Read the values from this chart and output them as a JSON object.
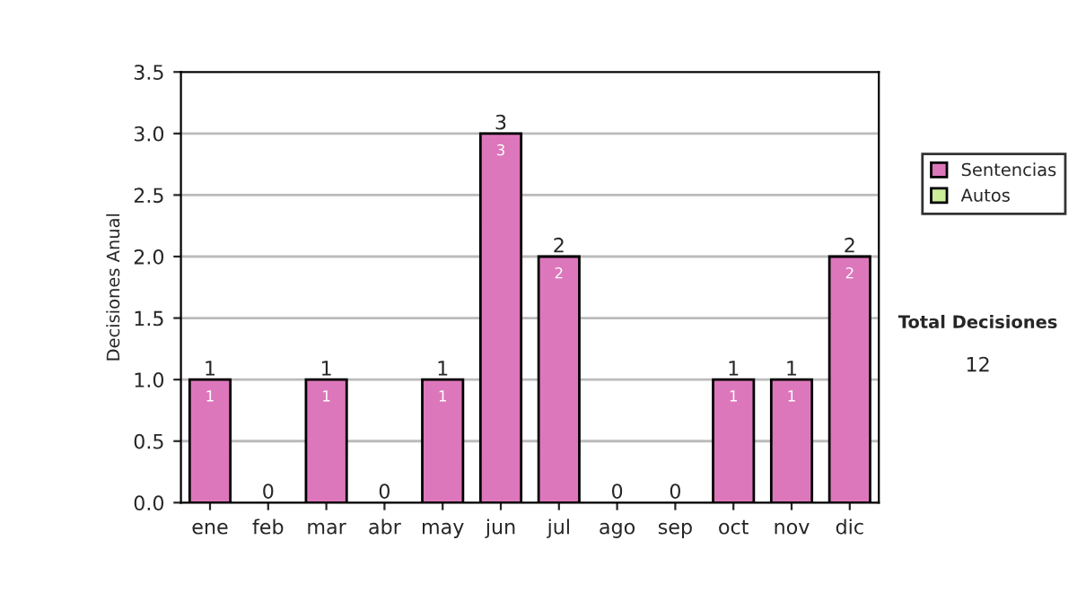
{
  "chart_data": {
    "type": "bar",
    "stacked": true,
    "ylabel": "Decisiones Anual",
    "categories": [
      "ene",
      "feb",
      "mar",
      "abr",
      "may",
      "jun",
      "jul",
      "ago",
      "sep",
      "oct",
      "nov",
      "dic"
    ],
    "series": [
      {
        "name": "Sentencias",
        "color": "#dd77bb",
        "values": [
          1,
          0,
          1,
          0,
          1,
          3,
          2,
          0,
          0,
          1,
          1,
          2
        ],
        "value_labels": [
          "1",
          null,
          "1",
          null,
          "1",
          "3",
          "2",
          null,
          null,
          "1",
          "1",
          "2"
        ]
      },
      {
        "name": "Autos",
        "color": "#ccee99",
        "values": [
          0,
          0,
          0,
          0,
          0,
          0,
          0,
          0,
          0,
          0,
          0,
          0
        ]
      }
    ],
    "totals": [
      "1",
      "0",
      "1",
      "0",
      "1",
      "3",
      "2",
      "0",
      "0",
      "1",
      "1",
      "2"
    ],
    "ylim": [
      0,
      3.5
    ],
    "yticks": [
      {
        "value": 0,
        "label": "0.0"
      },
      {
        "value": 0.5,
        "label": "0.5"
      },
      {
        "value": 1,
        "label": "1.0"
      },
      {
        "value": 1.5,
        "label": "1.5"
      },
      {
        "value": 2,
        "label": "2.0"
      },
      {
        "value": 2.5,
        "label": "2.5"
      },
      {
        "value": 3,
        "label": "3.0"
      },
      {
        "value": 3.5,
        "label": "3.5"
      }
    ],
    "grid": "y",
    "legend": "right",
    "annotations": [
      "Total Decisiones",
      "12"
    ]
  }
}
